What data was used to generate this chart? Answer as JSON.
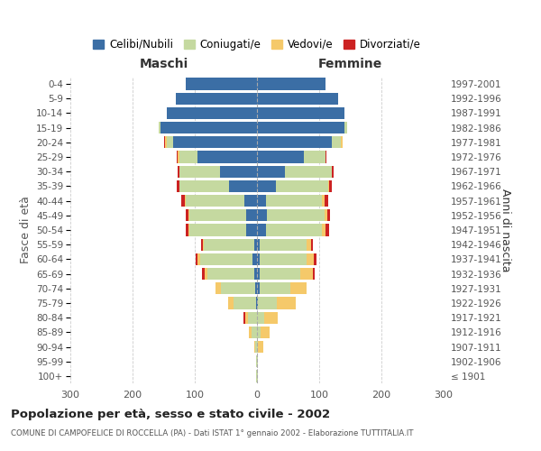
{
  "age_groups": [
    "100+",
    "95-99",
    "90-94",
    "85-89",
    "80-84",
    "75-79",
    "70-74",
    "65-69",
    "60-64",
    "55-59",
    "50-54",
    "45-49",
    "40-44",
    "35-39",
    "30-34",
    "25-29",
    "20-24",
    "15-19",
    "10-14",
    "5-9",
    "0-4"
  ],
  "birth_years": [
    "≤ 1901",
    "1902-1906",
    "1907-1911",
    "1912-1916",
    "1917-1921",
    "1922-1926",
    "1927-1931",
    "1932-1936",
    "1937-1941",
    "1942-1946",
    "1947-1951",
    "1952-1956",
    "1957-1961",
    "1962-1966",
    "1967-1971",
    "1972-1976",
    "1977-1981",
    "1982-1986",
    "1987-1991",
    "1992-1996",
    "1997-2001"
  ],
  "maschi": {
    "celibi": [
      0,
      0,
      0,
      0,
      0,
      2,
      3,
      5,
      7,
      5,
      18,
      18,
      20,
      45,
      60,
      95,
      135,
      155,
      145,
      130,
      115
    ],
    "coniugati": [
      1,
      1,
      3,
      8,
      14,
      35,
      55,
      75,
      85,
      80,
      90,
      90,
      95,
      80,
      65,
      30,
      10,
      3,
      0,
      0,
      0
    ],
    "vedovi": [
      0,
      0,
      2,
      5,
      5,
      10,
      8,
      4,
      4,
      2,
      2,
      2,
      1,
      0,
      0,
      2,
      3,
      0,
      0,
      0,
      0
    ],
    "divorziati": [
      0,
      0,
      0,
      0,
      3,
      0,
      0,
      4,
      2,
      3,
      5,
      4,
      6,
      4,
      3,
      2,
      1,
      0,
      0,
      0,
      0
    ]
  },
  "femmine": {
    "nubili": [
      0,
      0,
      0,
      0,
      0,
      2,
      4,
      5,
      5,
      4,
      14,
      16,
      15,
      30,
      45,
      75,
      120,
      140,
      140,
      130,
      110
    ],
    "coniugate": [
      1,
      1,
      2,
      6,
      12,
      30,
      50,
      65,
      75,
      75,
      90,
      92,
      90,
      85,
      75,
      35,
      15,
      5,
      0,
      0,
      0
    ],
    "vedove": [
      0,
      1,
      8,
      14,
      22,
      30,
      25,
      20,
      12,
      8,
      6,
      5,
      3,
      1,
      0,
      0,
      2,
      0,
      0,
      0,
      0
    ],
    "divorziate": [
      0,
      0,
      0,
      0,
      0,
      0,
      0,
      3,
      3,
      3,
      6,
      5,
      7,
      5,
      3,
      2,
      1,
      0,
      0,
      0,
      0
    ]
  },
  "colors": {
    "celibi": "#3b6ea5",
    "coniugati": "#c5d9a0",
    "vedovi": "#f5c96a",
    "divorziati": "#cc2222"
  },
  "xlim": 300,
  "title": "Popolazione per età, sesso e stato civile - 2002",
  "subtitle": "COMUNE DI CAMPOFELICE DI ROCCELLA (PA) - Dati ISTAT 1° gennaio 2002 - Elaborazione TUTTITALIA.IT",
  "ylabel": "Fasce di età",
  "ylabel_right": "Anni di nascita",
  "legend_labels": [
    "Celibi/Nubili",
    "Coniugati/e",
    "Vedovi/e",
    "Divorziati/e"
  ],
  "bg_color": "#ffffff",
  "grid_color": "#cccccc"
}
